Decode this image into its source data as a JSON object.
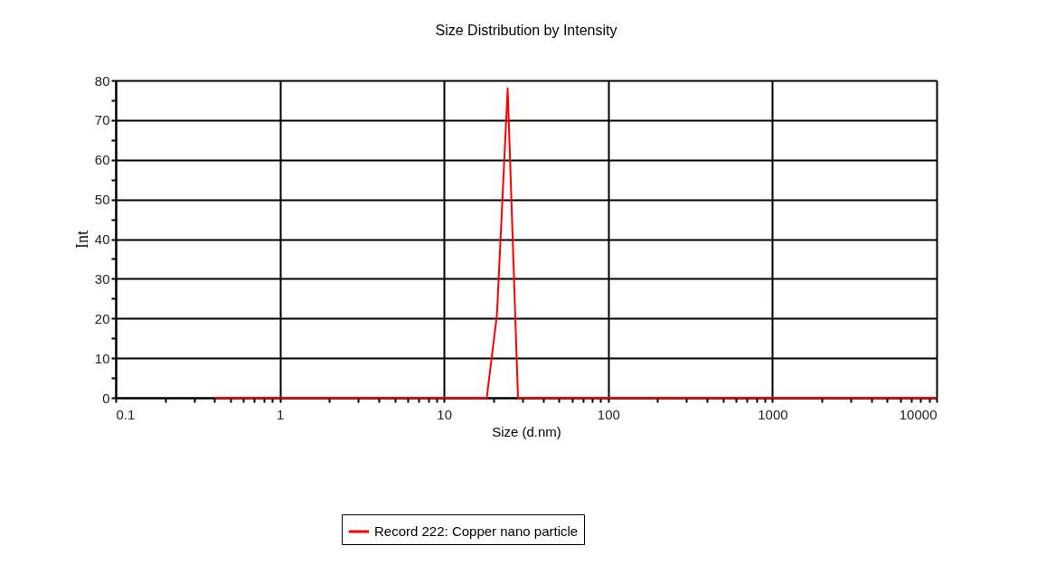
{
  "chart_data": {
    "type": "line",
    "title": "Size Distribution by Intensity",
    "xlabel": "Size (d.nm)",
    "ylabel": "Int",
    "log": "x",
    "series": [
      {
        "name": "Record 222: Copper nano particle",
        "color": "#ff0000",
        "x": [
          0.4,
          18.2,
          21,
          24.4,
          28.2,
          10000
        ],
        "values": [
          0,
          0,
          21,
          78,
          0,
          0
        ]
      }
    ],
    "xlim": [
      0.1,
      10000
    ],
    "xticks": [
      {
        "value": 0.1,
        "label": "0.1"
      },
      {
        "value": 0.2,
        "label": null
      },
      {
        "value": 0.3,
        "label": null
      },
      {
        "value": 0.4,
        "label": null
      },
      {
        "value": 0.5,
        "label": null
      },
      {
        "value": 0.6,
        "label": null
      },
      {
        "value": 0.7,
        "label": null
      },
      {
        "value": 0.8,
        "label": null
      },
      {
        "value": 0.9,
        "label": null
      },
      1,
      {
        "value": 2,
        "label": null
      },
      {
        "value": 3,
        "label": null
      },
      {
        "value": 4,
        "label": null
      },
      {
        "value": 5,
        "label": null
      },
      {
        "value": 6,
        "label": null
      },
      {
        "value": 7,
        "label": null
      },
      {
        "value": 8,
        "label": null
      },
      {
        "value": 9,
        "label": null
      },
      10,
      {
        "value": 20,
        "label": null
      },
      {
        "value": 30,
        "label": null
      },
      {
        "value": 40,
        "label": null
      },
      {
        "value": 50,
        "label": null
      },
      {
        "value": 60,
        "label": null
      },
      {
        "value": 70,
        "label": null
      },
      {
        "value": 80,
        "label": null
      },
      {
        "value": 90,
        "label": null
      },
      100,
      {
        "value": 200,
        "label": null
      },
      {
        "value": 300,
        "label": null
      },
      {
        "value": 400,
        "label": null
      },
      {
        "value": 500,
        "label": null
      },
      {
        "value": 600,
        "label": null
      },
      {
        "value": 700,
        "label": null
      },
      {
        "value": 800,
        "label": null
      },
      {
        "value": 900,
        "label": null
      },
      1000,
      {
        "value": 2000,
        "label": null
      },
      {
        "value": 3000,
        "label": null
      },
      {
        "value": 4000,
        "label": null
      },
      {
        "value": 5000,
        "label": null
      },
      {
        "value": 6000,
        "label": null
      },
      {
        "value": 7000,
        "label": null
      },
      {
        "value": 8000,
        "label": null
      },
      {
        "value": 9000,
        "label": null
      },
      10000
    ],
    "ylim": [
      0,
      80
    ],
    "yticks": [
      0,
      {
        "value": 5,
        "label": null
      },
      10,
      {
        "value": 15,
        "label": null
      },
      20,
      {
        "value": 25,
        "label": null
      },
      30,
      {
        "value": 35,
        "label": null
      },
      40,
      {
        "value": 45,
        "label": null
      },
      50,
      {
        "value": 55,
        "label": null
      },
      60,
      {
        "value": 65,
        "label": null
      },
      70,
      {
        "value": 75,
        "label": null
      },
      80
    ],
    "grid": true,
    "legend": "bottom",
    "marker": "none",
    "line_style": "solid"
  }
}
